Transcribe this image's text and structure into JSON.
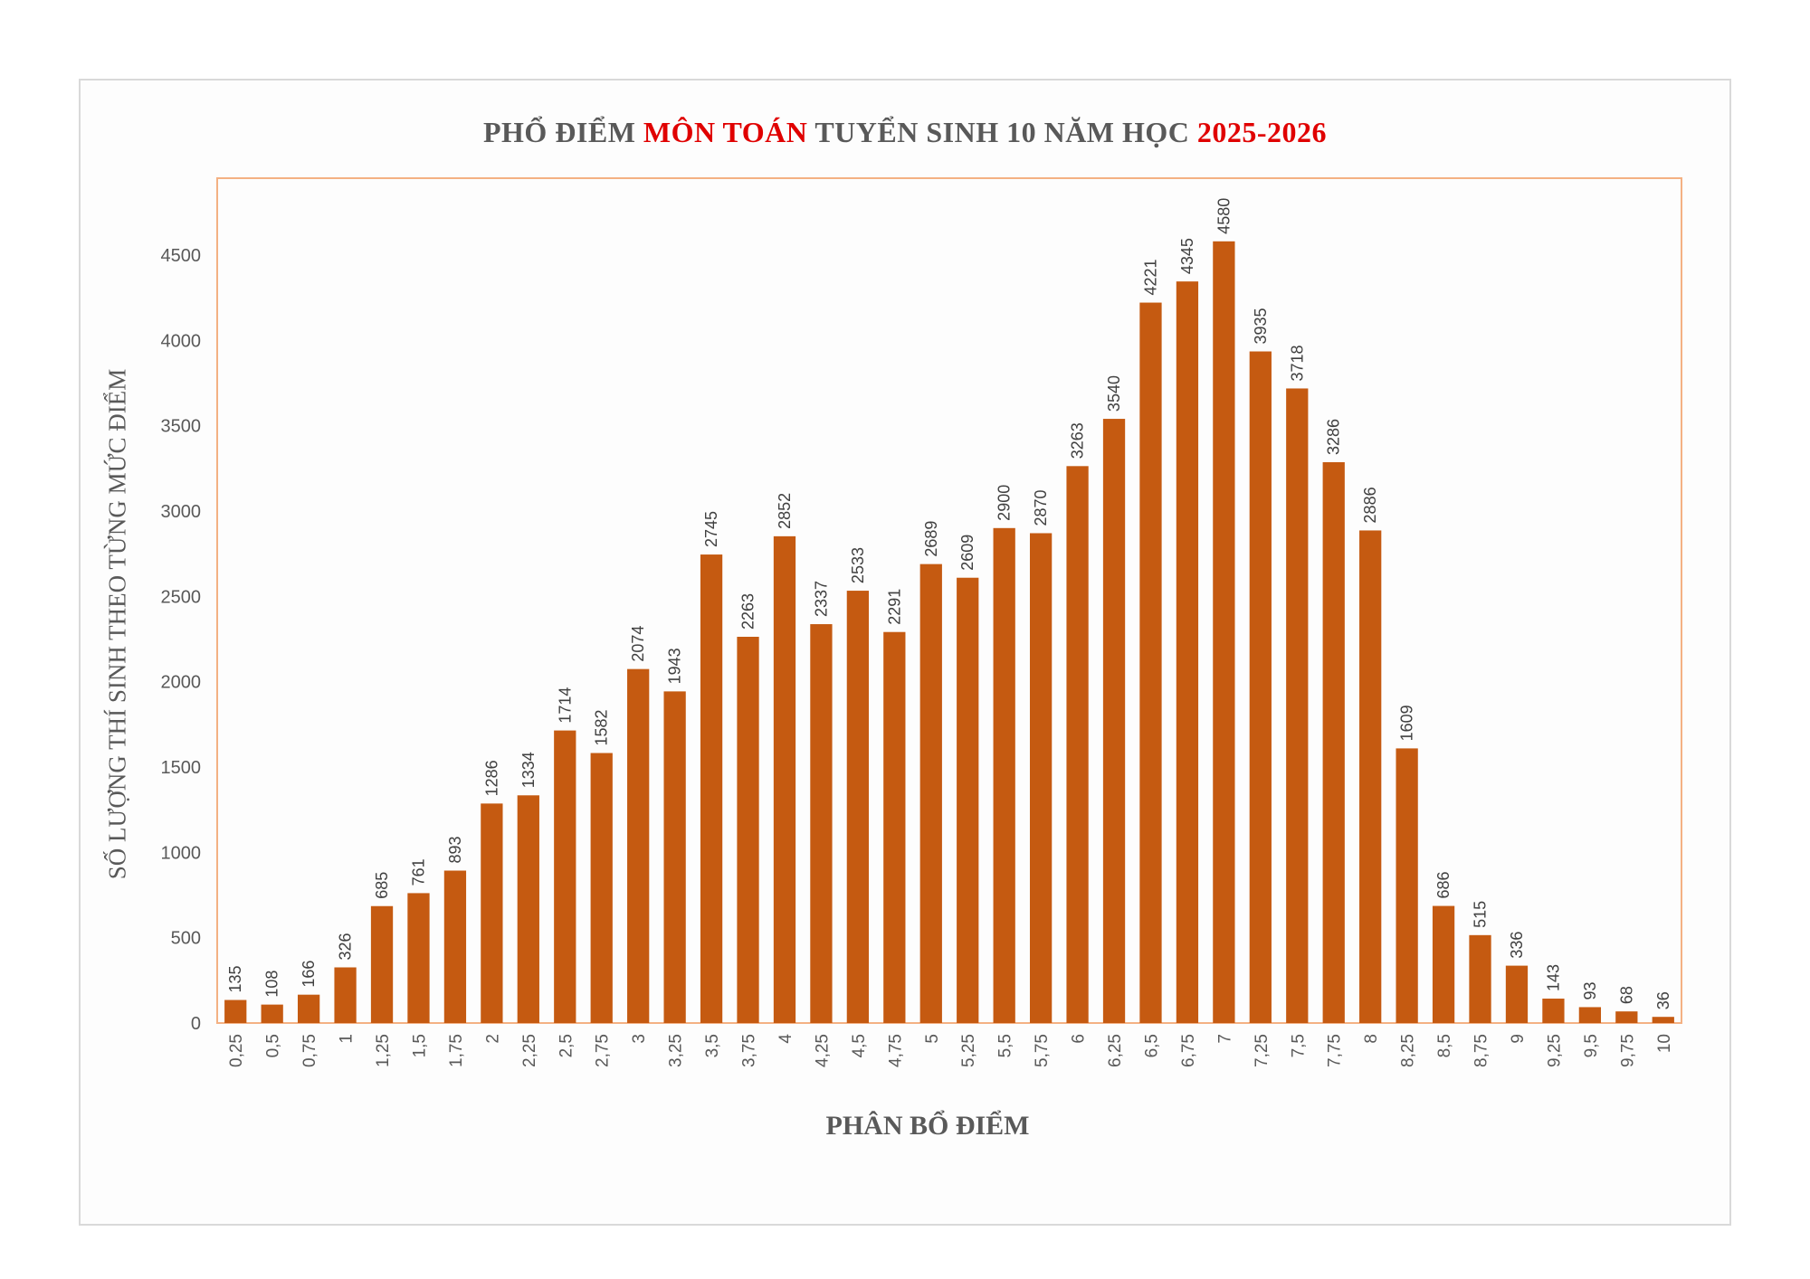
{
  "chart_data": {
    "type": "bar",
    "title_parts": [
      {
        "text": "PHỔ ĐIỂM ",
        "highlight": false
      },
      {
        "text": "MÔN TOÁN",
        "highlight": true
      },
      {
        "text": " TUYỂN SINH 10 NĂM HỌC ",
        "highlight": false
      },
      {
        "text": "2025-2026",
        "highlight": true
      }
    ],
    "xlabel": "PHÂN BỔ ĐIỂM",
    "ylabel": "SỐ LƯỢNG THÍ SINH THEO TỪNG MỨC ĐIỂM",
    "categories": [
      "0,25",
      "0,5",
      "0,75",
      "1",
      "1,25",
      "1,5",
      "1,75",
      "2",
      "2,25",
      "2,5",
      "2,75",
      "3",
      "3,25",
      "3,5",
      "3,75",
      "4",
      "4,25",
      "4,5",
      "4,75",
      "5",
      "5,25",
      "5,5",
      "5,75",
      "6",
      "6,25",
      "6,5",
      "6,75",
      "7",
      "7,25",
      "7,5",
      "7,75",
      "8",
      "8,25",
      "8,5",
      "8,75",
      "9",
      "9,25",
      "9,5",
      "9,75",
      "10"
    ],
    "values": [
      135,
      108,
      166,
      326,
      685,
      761,
      893,
      1286,
      1334,
      1714,
      1582,
      2074,
      1943,
      2745,
      2263,
      2852,
      2337,
      2533,
      2291,
      2689,
      2609,
      2900,
      2870,
      3263,
      3540,
      4221,
      4345,
      4580,
      3935,
      3718,
      3286,
      2886,
      1609,
      686,
      515,
      336,
      143,
      93,
      68,
      36
    ],
    "yticks": [
      0,
      500,
      1000,
      1500,
      2000,
      2500,
      3000,
      3500,
      4000,
      4500
    ],
    "ylim": [
      0,
      4950
    ],
    "grid": false,
    "legend": "none"
  },
  "colors": {
    "bar": "#c55a11",
    "axis_text": "#595959",
    "plot_border": "#f4b183",
    "highlight": "#e00000"
  }
}
